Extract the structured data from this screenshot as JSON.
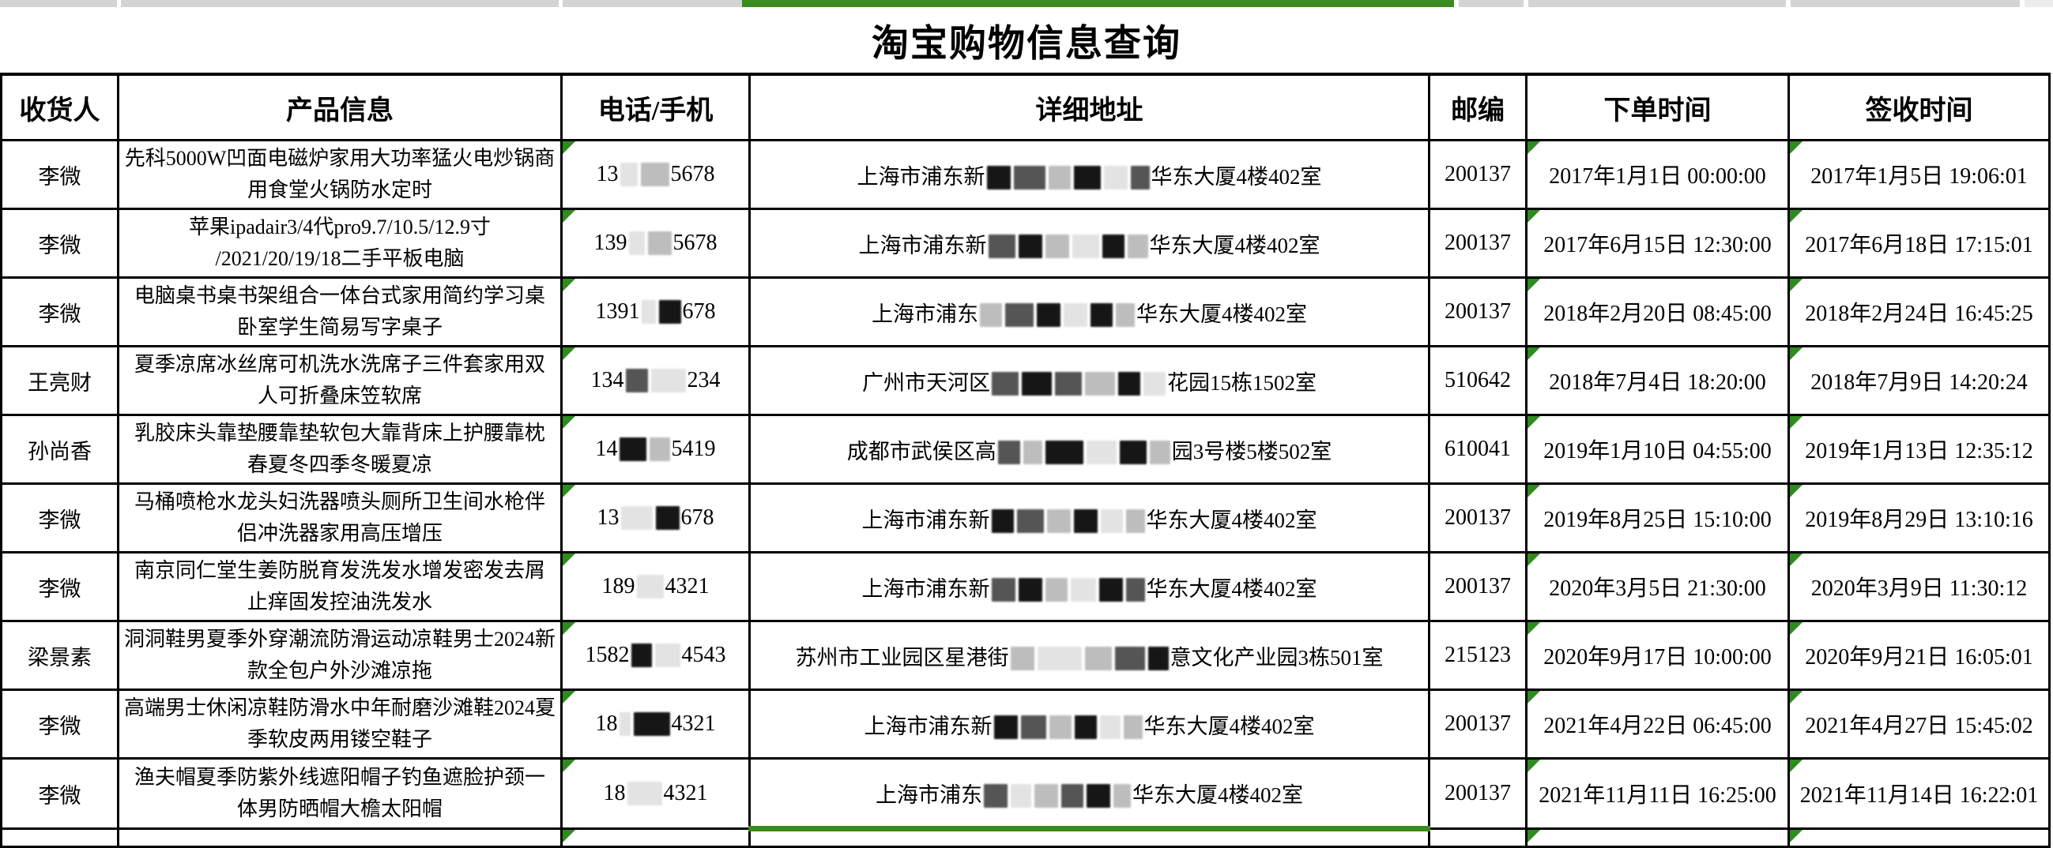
{
  "page": {
    "title": "淘宝购物信息查询"
  },
  "colors": {
    "accent_green_bar": "#3a8c1e",
    "error_triangle_green": "#2e8b1e",
    "strip_gray": "#d4d4d4",
    "border_black": "#000000"
  },
  "top_strip": {
    "green_cell_over_column": "详细地址"
  },
  "table": {
    "headers": [
      "收货人",
      "产品信息",
      "电话/手机",
      "详细地址",
      "邮编",
      "下单时间",
      "签收时间"
    ],
    "rows": [
      {
        "recipient": "李微",
        "product": "先科5000W凹面电磁炉家用大功率猛火电炒锅商\n用食堂火锅防水定时",
        "phone": {
          "prefix": "13",
          "blocks": [
            {
              "shade": "faint",
              "w": 22
            },
            {
              "shade": "light",
              "w": 36
            }
          ],
          "suffix": "5678"
        },
        "address": {
          "prefix": "上海市浦东新",
          "blocks": [
            {
              "shade": "dark",
              "w": 30
            },
            {
              "shade": "mid",
              "w": 40
            },
            {
              "shade": "light",
              "w": 28
            },
            {
              "shade": "dark",
              "w": 34
            },
            {
              "shade": "faint",
              "w": 30
            },
            {
              "shade": "mid",
              "w": 24
            }
          ],
          "suffix": "华东大厦4楼402室"
        },
        "zip": "200137",
        "order_time": "2017年1月1日 00:00:00",
        "sign_time": "2017年1月5日 19:06:01"
      },
      {
        "recipient": "李微",
        "product": "苹果ipadair3/4代pro9.7/10.5/12.9寸\n/2021/20/19/18二手平板电脑",
        "phone": {
          "prefix": "139",
          "blocks": [
            {
              "shade": "faint",
              "w": 20
            },
            {
              "shade": "light",
              "w": 30
            }
          ],
          "suffix": "5678"
        },
        "address": {
          "prefix": "上海市浦东新",
          "blocks": [
            {
              "shade": "mid",
              "w": 34
            },
            {
              "shade": "dark",
              "w": 30
            },
            {
              "shade": "light",
              "w": 30
            },
            {
              "shade": "faint",
              "w": 34
            },
            {
              "shade": "dark",
              "w": 28
            },
            {
              "shade": "light",
              "w": 26
            }
          ],
          "suffix": "华东大厦4楼402室"
        },
        "zip": "200137",
        "order_time": "2017年6月15日 12:30:00",
        "sign_time": "2017年6月18日 17:15:01"
      },
      {
        "recipient": "李微",
        "product": "电脑桌书桌书架组合一体台式家用简约学习桌\n卧室学生简易写字桌子",
        "phone": {
          "prefix": "1391",
          "blocks": [
            {
              "shade": "faint",
              "w": 18
            },
            {
              "shade": "dark",
              "w": 28
            }
          ],
          "suffix": "678"
        },
        "address": {
          "prefix": "上海市浦东",
          "blocks": [
            {
              "shade": "light",
              "w": 28
            },
            {
              "shade": "mid",
              "w": 36
            },
            {
              "shade": "dark",
              "w": 30
            },
            {
              "shade": "faint",
              "w": 30
            },
            {
              "shade": "dark",
              "w": 28
            },
            {
              "shade": "light",
              "w": 24
            }
          ],
          "suffix": "华东大厦4楼402室"
        },
        "zip": "200137",
        "order_time": "2018年2月20日 08:45:00",
        "sign_time": "2018年2月24日 16:45:25"
      },
      {
        "recipient": "王亮财",
        "product": "夏季凉席冰丝席可机洗水洗席子三件套家用双\n人可折叠床笠软席",
        "phone": {
          "prefix": "134",
          "blocks": [
            {
              "shade": "mid",
              "w": 28
            },
            {
              "shade": "faint",
              "w": 44
            }
          ],
          "suffix": "234"
        },
        "address": {
          "prefix": "广州市天河区",
          "blocks": [
            {
              "shade": "mid",
              "w": 34
            },
            {
              "shade": "dark",
              "w": 38
            },
            {
              "shade": "mid",
              "w": 34
            },
            {
              "shade": "light",
              "w": 38
            },
            {
              "shade": "dark",
              "w": 28
            },
            {
              "shade": "faint",
              "w": 28
            }
          ],
          "suffix": "花园15栋1502室"
        },
        "zip": "510642",
        "order_time": "2018年7月4日 18:20:00",
        "sign_time": "2018年7月9日 14:20:24"
      },
      {
        "recipient": "孙尚香",
        "product": "乳胶床头靠垫腰靠垫软包大靠背床上护腰靠枕\n春夏冬四季冬暖夏凉",
        "phone": {
          "prefix": "14",
          "blocks": [
            {
              "shade": "dark",
              "w": 34
            },
            {
              "shade": "light",
              "w": 26
            }
          ],
          "suffix": "5419"
        },
        "address": {
          "prefix": "成都市武侯区高",
          "blocks": [
            {
              "shade": "mid",
              "w": 28
            },
            {
              "shade": "light",
              "w": 24
            },
            {
              "shade": "dark",
              "w": 48
            },
            {
              "shade": "faint",
              "w": 38
            },
            {
              "shade": "dark",
              "w": 34
            },
            {
              "shade": "light",
              "w": 26
            }
          ],
          "suffix": "园3号楼5楼502室"
        },
        "zip": "610041",
        "order_time": "2019年1月10日 04:55:00",
        "sign_time": "2019年1月13日 12:35:12"
      },
      {
        "recipient": "李微",
        "product": "马桶喷枪水龙头妇洗器喷头厕所卫生间水枪伴\n侣冲洗器家用高压增压",
        "phone": {
          "prefix": "13",
          "blocks": [
            {
              "shade": "faint",
              "w": 40
            },
            {
              "shade": "dark",
              "w": 30
            }
          ],
          "suffix": "678"
        },
        "address": {
          "prefix": "上海市浦东新",
          "blocks": [
            {
              "shade": "dark",
              "w": 28
            },
            {
              "shade": "mid",
              "w": 34
            },
            {
              "shade": "light",
              "w": 30
            },
            {
              "shade": "dark",
              "w": 30
            },
            {
              "shade": "faint",
              "w": 28
            },
            {
              "shade": "light",
              "w": 24
            }
          ],
          "suffix": "华东大厦4楼402室"
        },
        "zip": "200137",
        "order_time": "2019年8月25日 15:10:00",
        "sign_time": "2019年8月29日 13:10:16"
      },
      {
        "recipient": "李微",
        "product": "南京同仁堂生姜防脱育发洗发水增发密发去屑\n止痒固发控油洗发水",
        "phone": {
          "prefix": "189",
          "blocks": [
            {
              "shade": "faint",
              "w": 34
            }
          ],
          "suffix": "4321"
        },
        "address": {
          "prefix": "上海市浦东新",
          "blocks": [
            {
              "shade": "mid",
              "w": 30
            },
            {
              "shade": "dark",
              "w": 30
            },
            {
              "shade": "light",
              "w": 28
            },
            {
              "shade": "faint",
              "w": 32
            },
            {
              "shade": "dark",
              "w": 30
            },
            {
              "shade": "mid",
              "w": 24
            }
          ],
          "suffix": "华东大厦4楼402室"
        },
        "zip": "200137",
        "order_time": "2020年3月5日 21:30:00",
        "sign_time": "2020年3月9日 11:30:12"
      },
      {
        "recipient": "梁景素",
        "product": "洞洞鞋男夏季外穿潮流防滑运动凉鞋男士2024新\n款全包户外沙滩凉拖",
        "phone": {
          "prefix": "1582",
          "blocks": [
            {
              "shade": "dark",
              "w": 26
            },
            {
              "shade": "faint",
              "w": 32
            }
          ],
          "suffix": "4543"
        },
        "address": {
          "prefix": "苏州市工业园区星港街",
          "blocks": [
            {
              "shade": "light",
              "w": 30
            },
            {
              "shade": "faint",
              "w": 56
            },
            {
              "shade": "light",
              "w": 34
            },
            {
              "shade": "mid",
              "w": 38
            },
            {
              "shade": "dark",
              "w": 26
            }
          ],
          "suffix": "意文化产业园3栋501室"
        },
        "zip": "215123",
        "order_time": "2020年9月17日 10:00:00",
        "sign_time": "2020年9月21日 16:05:01"
      },
      {
        "recipient": "李微",
        "product": "高端男士休闲凉鞋防滑水中年耐磨沙滩鞋2024夏\n季软皮两用镂空鞋子",
        "phone": {
          "prefix": "18",
          "blocks": [
            {
              "shade": "faint",
              "w": 14
            },
            {
              "shade": "dark",
              "w": 46
            }
          ],
          "suffix": "4321"
        },
        "address": {
          "prefix": "上海市浦东新",
          "blocks": [
            {
              "shade": "dark",
              "w": 30
            },
            {
              "shade": "mid",
              "w": 32
            },
            {
              "shade": "light",
              "w": 28
            },
            {
              "shade": "dark",
              "w": 28
            },
            {
              "shade": "faint",
              "w": 26
            },
            {
              "shade": "light",
              "w": 24
            }
          ],
          "suffix": "华东大厦4楼402室"
        },
        "zip": "200137",
        "order_time": "2021年4月22日 06:45:00",
        "sign_time": "2021年4月27日 15:45:02"
      },
      {
        "recipient": "李微",
        "product": "渔夫帽夏季防紫外线遮阳帽子钓鱼遮脸护颈一\n体男防晒帽大檐太阳帽",
        "phone": {
          "prefix": "18",
          "blocks": [
            {
              "shade": "faint",
              "w": 44
            }
          ],
          "suffix": "4321"
        },
        "address": {
          "prefix": "上海市浦东",
          "blocks": [
            {
              "shade": "mid",
              "w": 30
            },
            {
              "shade": "faint",
              "w": 26
            },
            {
              "shade": "light",
              "w": 30
            },
            {
              "shade": "mid",
              "w": 28
            },
            {
              "shade": "dark",
              "w": 30
            },
            {
              "shade": "light",
              "w": 22
            }
          ],
          "suffix": "华东大厦4楼402室"
        },
        "zip": "200137",
        "order_time": "2021年11月11日 16:25:00",
        "sign_time": "2021年11月14日 16:22:01"
      }
    ],
    "partial_row_visible": true
  }
}
